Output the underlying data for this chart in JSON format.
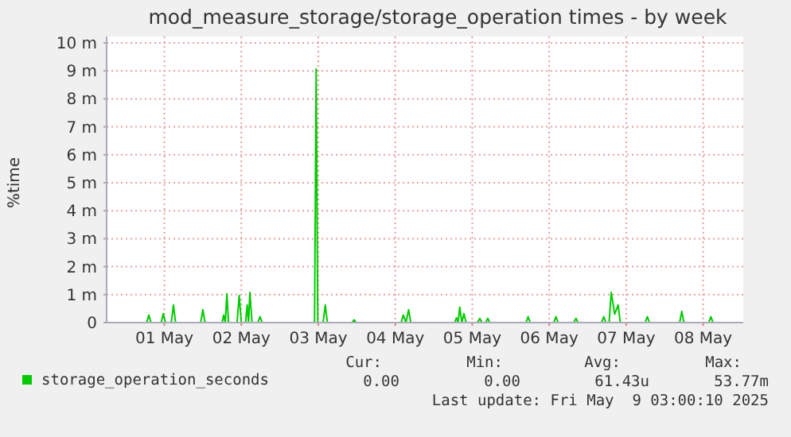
{
  "chart_data": {
    "type": "line",
    "title": "mod_measure_storage/storage_operation times - by week",
    "ylabel": "%time",
    "xlim": [
      "2025-04-30T06:00",
      "2025-05-08T12:30"
    ],
    "xticks": [
      {
        "value": "2025-05-01",
        "label": "01 May"
      },
      {
        "value": "2025-05-02",
        "label": "02 May"
      },
      {
        "value": "2025-05-03",
        "label": "03 May"
      },
      {
        "value": "2025-05-04",
        "label": "04 May"
      },
      {
        "value": "2025-05-05",
        "label": "05 May"
      },
      {
        "value": "2025-05-06",
        "label": "06 May"
      },
      {
        "value": "2025-05-07",
        "label": "07 May"
      },
      {
        "value": "2025-05-08",
        "label": "08 May"
      }
    ],
    "ylim": [
      0,
      10
    ],
    "yticks": [
      0,
      {
        "value": 1,
        "label": "1 m"
      },
      {
        "value": 2,
        "label": "2 m"
      },
      {
        "value": 3,
        "label": "3 m"
      },
      {
        "value": 4,
        "label": "4 m"
      },
      {
        "value": 5,
        "label": "5 m"
      },
      {
        "value": 6,
        "label": "6 m"
      },
      {
        "value": 7,
        "label": "7 m"
      },
      {
        "value": 8,
        "label": "8 m"
      },
      {
        "value": 9,
        "label": "9 m"
      },
      {
        "value": 10,
        "label": "10 m"
      }
    ],
    "grid": true,
    "legend": "bottom",
    "marker": "none",
    "line_style": "solid",
    "series": [
      {
        "name": "storage_operation_seconds",
        "color": "#00cc00",
        "x": [
          "2025-04-30T06:00",
          "2025-04-30T18:30",
          "2025-04-30T19:10",
          "2025-04-30T19:50",
          "2025-04-30T23:00",
          "2025-04-30T23:40",
          "2025-05-01T00:20",
          "2025-05-01T02:10",
          "2025-05-01T02:50",
          "2025-05-01T03:30",
          "2025-05-01T11:20",
          "2025-05-01T12:00",
          "2025-05-01T12:40",
          "2025-05-01T18:00",
          "2025-05-01T18:30",
          "2025-05-01T19:00",
          "2025-05-01T19:30",
          "2025-05-01T20:00",
          "2025-05-01T22:40",
          "2025-05-01T23:20",
          "2025-05-02T00:00",
          "2025-05-02T01:20",
          "2025-05-02T01:50",
          "2025-05-02T02:15",
          "2025-05-02T02:40",
          "2025-05-02T03:20",
          "2025-05-02T05:10",
          "2025-05-02T05:50",
          "2025-05-02T06:30",
          "2025-05-02T22:50",
          "2025-05-02T23:20",
          "2025-05-02T23:50",
          "2025-05-03T01:30",
          "2025-05-03T02:10",
          "2025-05-03T02:50",
          "2025-05-03T10:30",
          "2025-05-03T11:10",
          "2025-05-03T11:50",
          "2025-05-04T01:50",
          "2025-05-04T02:30",
          "2025-05-04T03:20",
          "2025-05-04T04:10",
          "2025-05-04T04:50",
          "2025-05-04T18:30",
          "2025-05-04T19:05",
          "2025-05-04T19:35",
          "2025-05-04T20:05",
          "2025-05-04T20:45",
          "2025-05-04T21:25",
          "2025-05-04T22:05",
          "2025-05-05T01:40",
          "2025-05-05T02:20",
          "2025-05-05T03:00",
          "2025-05-05T04:10",
          "2025-05-05T04:50",
          "2025-05-05T05:30",
          "2025-05-05T16:45",
          "2025-05-05T17:25",
          "2025-05-05T18:05",
          "2025-05-06T01:25",
          "2025-05-06T02:05",
          "2025-05-06T02:45",
          "2025-05-06T07:40",
          "2025-05-06T08:20",
          "2025-05-06T09:00",
          "2025-05-06T16:20",
          "2025-05-06T17:00",
          "2025-05-06T17:40",
          "2025-05-06T18:40",
          "2025-05-06T19:20",
          "2025-05-06T20:25",
          "2025-05-06T21:30",
          "2025-05-06T22:10",
          "2025-05-07T05:55",
          "2025-05-07T06:35",
          "2025-05-07T07:15",
          "2025-05-07T16:40",
          "2025-05-07T17:20",
          "2025-05-07T18:00",
          "2025-05-08T01:45",
          "2025-05-08T02:25",
          "2025-05-08T03:05",
          "2025-05-08T12:30"
        ],
        "values": [
          0,
          0,
          0.27,
          0,
          0,
          0.32,
          0,
          0,
          0.63,
          0,
          0,
          0.46,
          0,
          0,
          0.27,
          0,
          1.03,
          0,
          0,
          0.97,
          0,
          0,
          0.63,
          0,
          1.08,
          0,
          0,
          0.21,
          0,
          0,
          9.07,
          0,
          0,
          0.63,
          0,
          0,
          0.1,
          0,
          0,
          0.27,
          0,
          0.46,
          0,
          0,
          0.17,
          0,
          0.55,
          0,
          0.32,
          0,
          0,
          0.15,
          0,
          0,
          0.15,
          0,
          0,
          0.21,
          0,
          0,
          0.21,
          0,
          0,
          0.15,
          0,
          0,
          0.21,
          0,
          0,
          1.08,
          0.3,
          0.63,
          0,
          0,
          0.21,
          0,
          0,
          0.4,
          0,
          0,
          0.21,
          0,
          0
        ]
      }
    ],
    "annotations": [
      "Cur:",
      "Min:",
      "Avg:",
      "Max:",
      "0.00",
      "0.00",
      "61.43u",
      "53.77m",
      "Last update: Fri May  9 03:00:10 2025"
    ]
  }
}
